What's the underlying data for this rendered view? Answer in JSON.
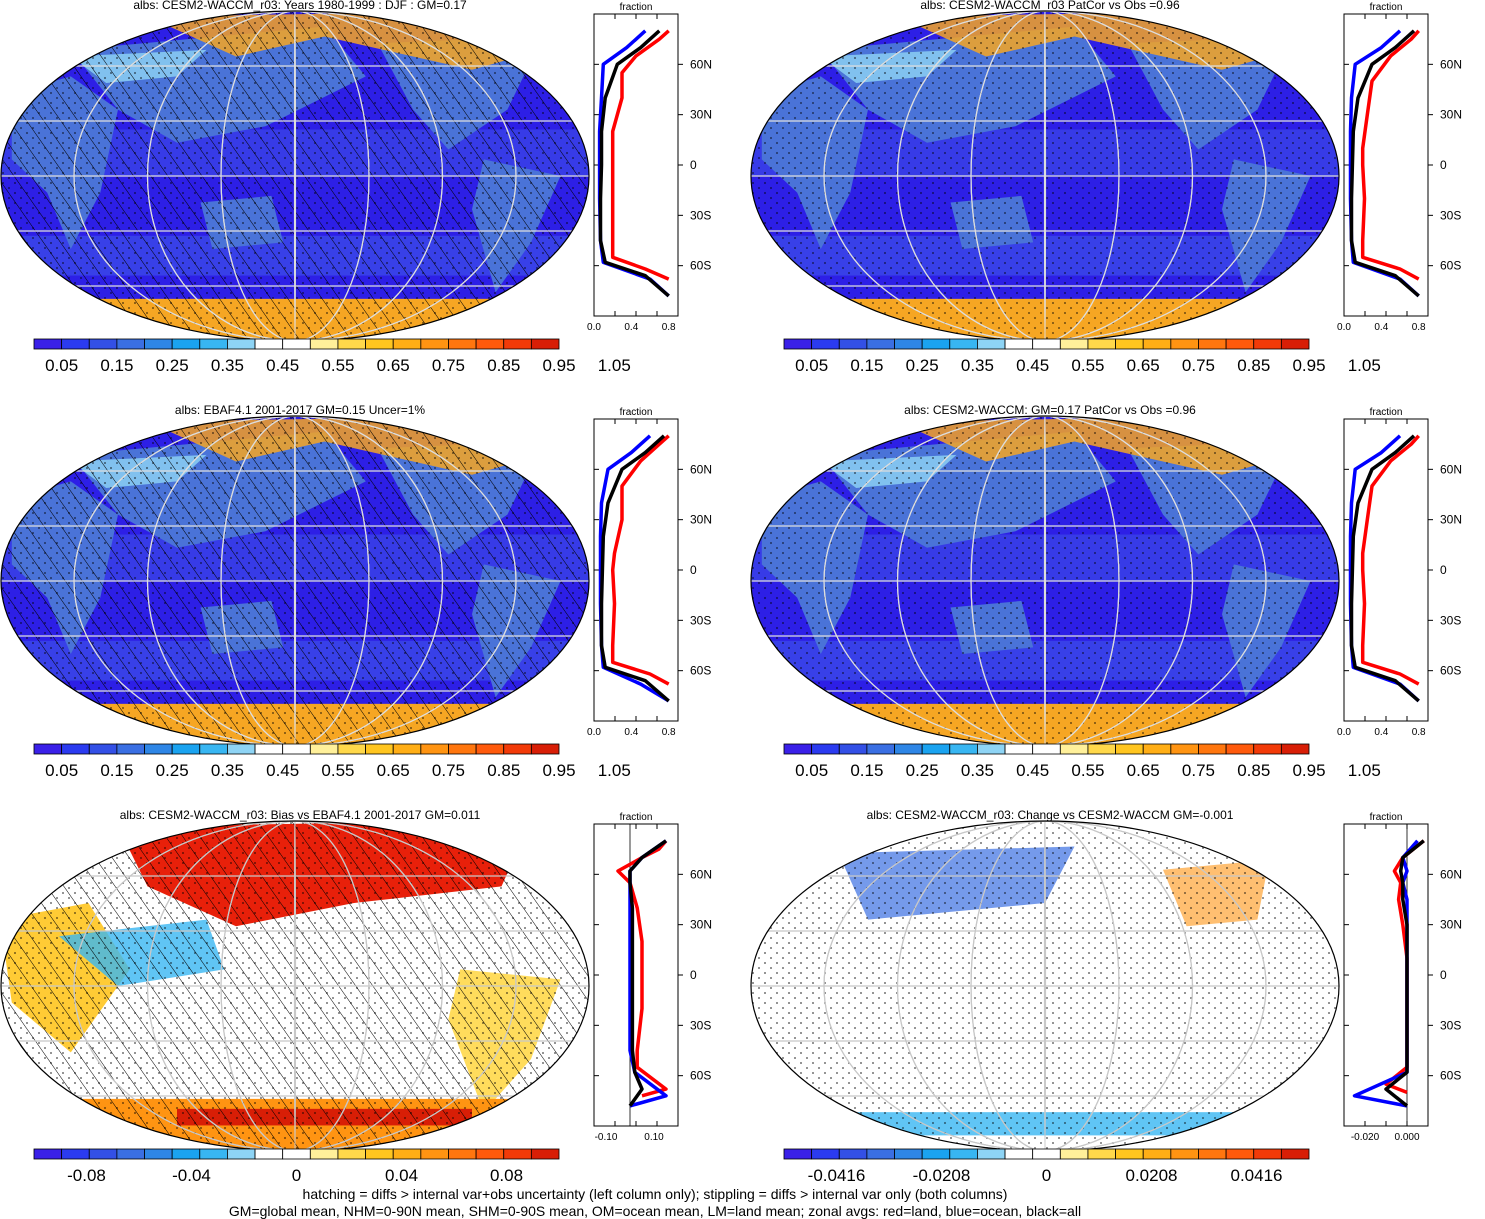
{
  "colors": {
    "seq": [
      "#3a20e8",
      "#2b3bf0",
      "#3350e6",
      "#3a6fe3",
      "#2e86e6",
      "#1aa3f0",
      "#38b6f2",
      "#8ed4f5",
      "#ffffff",
      "#ffffff",
      "#fff09a",
      "#ffd84a",
      "#ffc51f",
      "#ffae16",
      "#ff9412",
      "#ff760e",
      "#ff5a0c",
      "#f23a08",
      "#d81e06"
    ],
    "div": [
      "#3a20e8",
      "#2b3bf0",
      "#3350e6",
      "#3a6fe3",
      "#2e86e6",
      "#1aa3f0",
      "#38b6f2",
      "#8ed4f5",
      "#ffffff",
      "#ffffff",
      "#fff09a",
      "#ffd84a",
      "#ffc51f",
      "#ffae16",
      "#ff9412",
      "#ff760e",
      "#ff5a0c",
      "#f23a08",
      "#d81e06"
    ],
    "ocean_dark": "#2d1fe6",
    "ocean_mid": "#3d4fe8",
    "land_blue": "#4a73d8",
    "ice": "#f6a623",
    "land_line": "red",
    "ocean_line": "blue",
    "all_line": "black"
  },
  "panels": [
    {
      "title": "albs: CESM2-WACCM_r03: Years 1980-1999 : DJF : GM=0.17",
      "kind": "seq",
      "hatch": true,
      "cbar_labels": [
        "0.05",
        "0.15",
        "0.25",
        "0.35",
        "0.45",
        "0.55",
        "0.65",
        "0.75",
        "0.85",
        "0.95",
        "1.05"
      ],
      "zonal": {
        "top_label": "fraction",
        "xticks": [
          "0.0",
          "0.4",
          "0.8"
        ],
        "lat_ticks": [
          "60N",
          "30N",
          "0",
          "30S",
          "60S"
        ],
        "xlim": [
          0,
          0.9
        ],
        "land": [
          [
            0.8,
            80
          ],
          [
            0.7,
            75
          ],
          [
            0.45,
            65
          ],
          [
            0.3,
            55
          ],
          [
            0.3,
            40
          ],
          [
            0.2,
            20
          ],
          [
            0.2,
            0
          ],
          [
            0.2,
            -20
          ],
          [
            0.2,
            -45
          ],
          [
            0.2,
            -55
          ],
          [
            0.55,
            -62
          ],
          [
            0.8,
            -68
          ]
        ],
        "ocean": [
          [
            0.55,
            80
          ],
          [
            0.35,
            70
          ],
          [
            0.1,
            60
          ],
          [
            0.08,
            40
          ],
          [
            0.06,
            20
          ],
          [
            0.06,
            0
          ],
          [
            0.06,
            -20
          ],
          [
            0.07,
            -45
          ],
          [
            0.1,
            -58
          ],
          [
            0.6,
            -68
          ],
          [
            0.8,
            -78
          ]
        ],
        "all": [
          [
            0.7,
            80
          ],
          [
            0.5,
            70
          ],
          [
            0.25,
            60
          ],
          [
            0.12,
            40
          ],
          [
            0.08,
            20
          ],
          [
            0.08,
            0
          ],
          [
            0.07,
            -20
          ],
          [
            0.07,
            -45
          ],
          [
            0.12,
            -58
          ],
          [
            0.55,
            -66
          ],
          [
            0.8,
            -78
          ]
        ]
      }
    },
    {
      "title": "albs: CESM2-WACCM_r03 PatCor vs Obs =0.96",
      "kind": "seq",
      "hatch": false,
      "cbar_labels": [
        "0.05",
        "0.15",
        "0.25",
        "0.35",
        "0.45",
        "0.55",
        "0.65",
        "0.75",
        "0.85",
        "0.95",
        "1.05"
      ],
      "zonal": {
        "top_label": "fraction",
        "xticks": [
          "0.0",
          "0.4",
          "0.8"
        ],
        "lat_ticks": [
          "60N",
          "30N",
          "0",
          "30S",
          "60S"
        ],
        "xlim": [
          0,
          0.9
        ],
        "land": [
          [
            0.8,
            80
          ],
          [
            0.72,
            75
          ],
          [
            0.5,
            65
          ],
          [
            0.3,
            50
          ],
          [
            0.25,
            30
          ],
          [
            0.2,
            10
          ],
          [
            0.2,
            0
          ],
          [
            0.22,
            -20
          ],
          [
            0.2,
            -45
          ],
          [
            0.2,
            -55
          ],
          [
            0.6,
            -62
          ],
          [
            0.8,
            -68
          ]
        ],
        "ocean": [
          [
            0.6,
            80
          ],
          [
            0.4,
            70
          ],
          [
            0.12,
            60
          ],
          [
            0.08,
            40
          ],
          [
            0.07,
            20
          ],
          [
            0.07,
            0
          ],
          [
            0.07,
            -20
          ],
          [
            0.08,
            -45
          ],
          [
            0.1,
            -58
          ],
          [
            0.6,
            -68
          ],
          [
            0.8,
            -78
          ]
        ],
        "all": [
          [
            0.75,
            80
          ],
          [
            0.55,
            70
          ],
          [
            0.3,
            60
          ],
          [
            0.15,
            40
          ],
          [
            0.1,
            20
          ],
          [
            0.09,
            0
          ],
          [
            0.08,
            -20
          ],
          [
            0.08,
            -45
          ],
          [
            0.12,
            -58
          ],
          [
            0.55,
            -66
          ],
          [
            0.8,
            -78
          ]
        ]
      }
    },
    {
      "title": "albs: EBAF4.1 2001-2017 GM=0.15 Uncer=1%",
      "kind": "seq",
      "hatch": true,
      "cbar_labels": [
        "0.05",
        "0.15",
        "0.25",
        "0.35",
        "0.45",
        "0.55",
        "0.65",
        "0.75",
        "0.85",
        "0.95",
        "1.05"
      ],
      "zonal": {
        "top_label": "fraction",
        "xticks": [
          "0.0",
          "0.4",
          "0.8"
        ],
        "lat_ticks": [
          "60N",
          "30N",
          "0",
          "30S",
          "60S"
        ],
        "xlim": [
          0,
          0.9
        ],
        "land": [
          [
            0.8,
            80
          ],
          [
            0.7,
            75
          ],
          [
            0.5,
            65
          ],
          [
            0.3,
            50
          ],
          [
            0.3,
            30
          ],
          [
            0.22,
            10
          ],
          [
            0.2,
            0
          ],
          [
            0.22,
            -20
          ],
          [
            0.2,
            -45
          ],
          [
            0.2,
            -55
          ],
          [
            0.6,
            -62
          ],
          [
            0.8,
            -68
          ]
        ],
        "ocean": [
          [
            0.6,
            80
          ],
          [
            0.4,
            70
          ],
          [
            0.15,
            60
          ],
          [
            0.08,
            40
          ],
          [
            0.07,
            20
          ],
          [
            0.07,
            0
          ],
          [
            0.07,
            -20
          ],
          [
            0.08,
            -45
          ],
          [
            0.1,
            -58
          ],
          [
            0.5,
            -68
          ],
          [
            0.8,
            -78
          ]
        ],
        "all": [
          [
            0.75,
            80
          ],
          [
            0.55,
            70
          ],
          [
            0.3,
            60
          ],
          [
            0.15,
            40
          ],
          [
            0.1,
            20
          ],
          [
            0.09,
            0
          ],
          [
            0.08,
            -20
          ],
          [
            0.08,
            -45
          ],
          [
            0.12,
            -58
          ],
          [
            0.55,
            -66
          ],
          [
            0.8,
            -78
          ]
        ]
      }
    },
    {
      "title": "albs: CESM2-WACCM: GM=0.17 PatCor vs Obs =0.96",
      "kind": "seq",
      "hatch": false,
      "cbar_labels": [
        "0.05",
        "0.15",
        "0.25",
        "0.35",
        "0.45",
        "0.55",
        "0.65",
        "0.75",
        "0.85",
        "0.95",
        "1.05"
      ],
      "zonal": {
        "top_label": "fraction",
        "xticks": [
          "0.0",
          "0.4",
          "0.8"
        ],
        "lat_ticks": [
          "60N",
          "30N",
          "0",
          "30S",
          "60S"
        ],
        "xlim": [
          0,
          0.9
        ],
        "land": [
          [
            0.8,
            80
          ],
          [
            0.72,
            75
          ],
          [
            0.5,
            65
          ],
          [
            0.3,
            50
          ],
          [
            0.25,
            30
          ],
          [
            0.2,
            10
          ],
          [
            0.2,
            0
          ],
          [
            0.22,
            -20
          ],
          [
            0.2,
            -45
          ],
          [
            0.2,
            -55
          ],
          [
            0.6,
            -62
          ],
          [
            0.8,
            -68
          ]
        ],
        "ocean": [
          [
            0.6,
            80
          ],
          [
            0.4,
            70
          ],
          [
            0.12,
            60
          ],
          [
            0.08,
            40
          ],
          [
            0.07,
            20
          ],
          [
            0.07,
            0
          ],
          [
            0.07,
            -20
          ],
          [
            0.08,
            -45
          ],
          [
            0.1,
            -58
          ],
          [
            0.6,
            -68
          ],
          [
            0.8,
            -78
          ]
        ],
        "all": [
          [
            0.75,
            80
          ],
          [
            0.55,
            70
          ],
          [
            0.3,
            60
          ],
          [
            0.15,
            40
          ],
          [
            0.1,
            20
          ],
          [
            0.09,
            0
          ],
          [
            0.08,
            -20
          ],
          [
            0.08,
            -45
          ],
          [
            0.12,
            -58
          ],
          [
            0.55,
            -66
          ],
          [
            0.8,
            -78
          ]
        ]
      }
    },
    {
      "title": "albs: CESM2-WACCM_r03: Bias vs EBAF4.1 2001-2017 GM=0.011",
      "kind": "bias",
      "hatch": true,
      "cbar_labels": [
        "-0.08",
        "-0.04",
        "0",
        "0.04",
        "0.08"
      ],
      "zonal": {
        "top_label": "fraction",
        "xticks": [
          "-0.10",
          "0.10"
        ],
        "lat_ticks": [
          "60N",
          "30N",
          "0",
          "30S",
          "60S"
        ],
        "xlim": [
          -0.15,
          0.2
        ],
        "land": [
          [
            0.15,
            80
          ],
          [
            0.12,
            75
          ],
          [
            0.05,
            70
          ],
          [
            -0.05,
            62
          ],
          [
            0.0,
            55
          ],
          [
            0.03,
            40
          ],
          [
            0.05,
            20
          ],
          [
            0.05,
            0
          ],
          [
            0.05,
            -20
          ],
          [
            0.03,
            -45
          ],
          [
            0.03,
            -55
          ],
          [
            0.15,
            -68
          ],
          [
            0.05,
            -72
          ]
        ],
        "ocean": [
          [
            0.15,
            80
          ],
          [
            0.1,
            75
          ],
          [
            0.05,
            70
          ],
          [
            0.0,
            62
          ],
          [
            0.0,
            55
          ],
          [
            0.0,
            40
          ],
          [
            0.0,
            20
          ],
          [
            0.0,
            0
          ],
          [
            0.0,
            -20
          ],
          [
            0.0,
            -45
          ],
          [
            0.02,
            -58
          ],
          [
            0.15,
            -72
          ],
          [
            0.0,
            -78
          ]
        ],
        "all": [
          [
            0.15,
            80
          ],
          [
            0.1,
            75
          ],
          [
            0.05,
            70
          ],
          [
            0.0,
            62
          ],
          [
            0.0,
            55
          ],
          [
            0.01,
            40
          ],
          [
            0.01,
            20
          ],
          [
            0.01,
            0
          ],
          [
            0.01,
            -20
          ],
          [
            0.01,
            -45
          ],
          [
            0.02,
            -58
          ],
          [
            0.05,
            -68
          ],
          [
            0.0,
            -78
          ]
        ]
      }
    },
    {
      "title": "albs: CESM2-WACCM_r03: Change vs CESM2-WACCM GM=-0.001",
      "kind": "change",
      "hatch": false,
      "cbar_labels": [
        "-0.0416",
        "-0.0208",
        "0",
        "0.0208",
        "0.0416"
      ],
      "zonal": {
        "top_label": "fraction",
        "xticks": [
          "-0.020",
          "0.000"
        ],
        "lat_ticks": [
          "60N",
          "30N",
          "0",
          "30S",
          "60S"
        ],
        "xlim": [
          -0.03,
          0.01
        ],
        "land": [
          [
            0.008,
            80
          ],
          [
            -0.002,
            70
          ],
          [
            -0.006,
            62
          ],
          [
            -0.003,
            55
          ],
          [
            -0.004,
            45
          ],
          [
            -0.002,
            30
          ],
          [
            0.0,
            10
          ],
          [
            0.0,
            0
          ],
          [
            0.0,
            -20
          ],
          [
            0.0,
            -45
          ],
          [
            0.0,
            -55
          ],
          [
            -0.01,
            -65
          ],
          [
            0.0,
            -70
          ]
        ],
        "ocean": [
          [
            0.005,
            80
          ],
          [
            -0.002,
            70
          ],
          [
            0.0,
            62
          ],
          [
            -0.002,
            55
          ],
          [
            0.0,
            45
          ],
          [
            0.0,
            30
          ],
          [
            0.0,
            10
          ],
          [
            0.0,
            0
          ],
          [
            0.0,
            -20
          ],
          [
            0.0,
            -45
          ],
          [
            0.0,
            -58
          ],
          [
            -0.025,
            -72
          ],
          [
            0.0,
            -78
          ]
        ],
        "all": [
          [
            0.008,
            80
          ],
          [
            -0.002,
            70
          ],
          [
            -0.003,
            62
          ],
          [
            -0.002,
            55
          ],
          [
            -0.002,
            45
          ],
          [
            0.0,
            30
          ],
          [
            0.0,
            10
          ],
          [
            0.0,
            0
          ],
          [
            0.0,
            -20
          ],
          [
            0.0,
            -45
          ],
          [
            0.0,
            -58
          ],
          [
            -0.01,
            -68
          ],
          [
            0.0,
            -78
          ]
        ]
      }
    }
  ],
  "footer": {
    "line1": "hatching = diffs > internal var+obs uncertainty (left column only); stippling = diffs > internal var only (both columns)",
    "line2": "GM=global mean, NHM=0-90N mean, SHM=0-90S mean, OM=ocean mean, LM=land mean; zonal avgs: red=land, blue=ocean, black=all"
  },
  "chart_data": [
    {
      "type": "heatmap",
      "title": "albs: CESM2-WACCM_r03: Years 1980-1999 : DJF : GM=0.17",
      "colorbar_ticks": [
        0.05,
        0.15,
        0.25,
        0.35,
        0.45,
        0.55,
        0.65,
        0.75,
        0.85,
        0.95,
        1.05
      ]
    },
    {
      "type": "heatmap",
      "title": "albs: CESM2-WACCM_r03 PatCor vs Obs =0.96",
      "colorbar_ticks": [
        0.05,
        0.15,
        0.25,
        0.35,
        0.45,
        0.55,
        0.65,
        0.75,
        0.85,
        0.95,
        1.05
      ]
    },
    {
      "type": "heatmap",
      "title": "albs: EBAF4.1 2001-2017 GM=0.15 Uncer=1%",
      "colorbar_ticks": [
        0.05,
        0.15,
        0.25,
        0.35,
        0.45,
        0.55,
        0.65,
        0.75,
        0.85,
        0.95,
        1.05
      ]
    },
    {
      "type": "heatmap",
      "title": "albs: CESM2-WACCM: GM=0.17 PatCor vs Obs =0.96",
      "colorbar_ticks": [
        0.05,
        0.15,
        0.25,
        0.35,
        0.45,
        0.55,
        0.65,
        0.75,
        0.85,
        0.95,
        1.05
      ]
    },
    {
      "type": "heatmap",
      "title": "albs: CESM2-WACCM_r03: Bias vs EBAF4.1 2001-2017 GM=0.011",
      "colorbar_ticks": [
        -0.08,
        -0.04,
        0,
        0.04,
        0.08
      ]
    },
    {
      "type": "heatmap",
      "title": "albs: CESM2-WACCM_r03: Change vs CESM2-WACCM GM=-0.001",
      "colorbar_ticks": [
        -0.0416,
        -0.0208,
        0,
        0.0208,
        0.0416
      ]
    }
  ]
}
